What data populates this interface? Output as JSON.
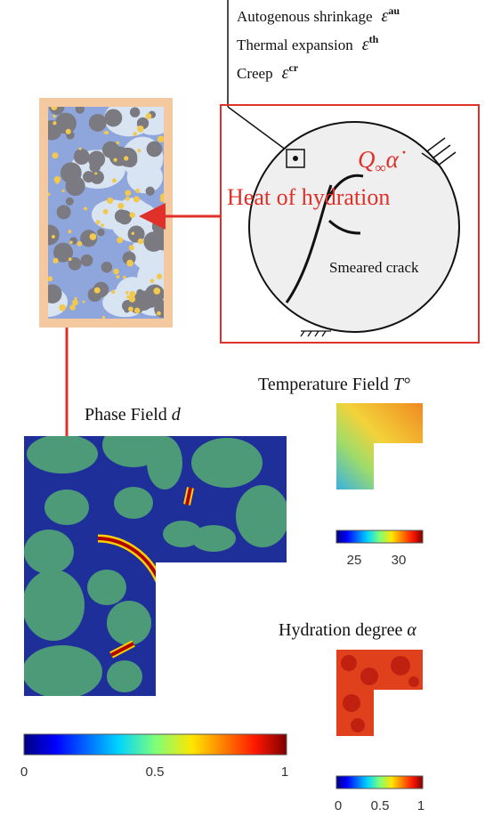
{
  "strains": [
    {
      "label": "Autogenous shrinkage",
      "symbol": "ε",
      "sup": "au"
    },
    {
      "label": "Thermal expansion",
      "symbol": "ε",
      "sup": "th"
    },
    {
      "label": "Creep",
      "symbol": "ε",
      "sup": "cr"
    }
  ],
  "domain": {
    "load_base": "Q",
    "load_sub": "∞",
    "load_rate": "α̇",
    "heat": "Heat of hydration",
    "crack": "Smeared crack"
  },
  "phase_field": {
    "title": "Phase Field",
    "symbol": "d",
    "colorbar_ticks": [
      "0",
      "0.5",
      "1"
    ]
  },
  "temperature_field": {
    "title": "Temperature Field",
    "symbol": "T°",
    "colorbar_ticks": [
      "25",
      "30"
    ]
  },
  "hydration_degree": {
    "title": "Hydration degree",
    "symbol": "α",
    "colorbar_ticks": [
      "0",
      "0.5",
      "1"
    ]
  }
}
